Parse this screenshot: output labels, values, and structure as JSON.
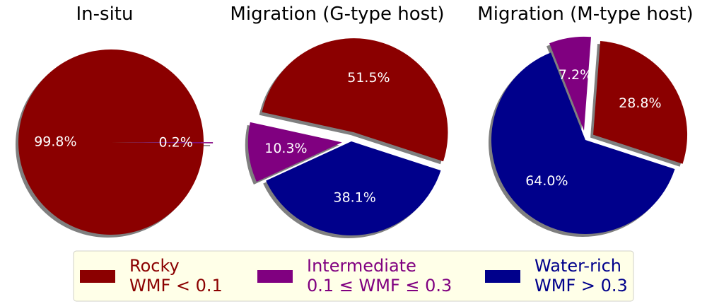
{
  "chart_data": {
    "type": "pie",
    "categories": [
      "Rocky",
      "Intermediate",
      "Water-rich"
    ],
    "colors": {
      "Rocky": "#8b0000",
      "Intermediate": "#800080",
      "Water-rich": "#00008b"
    },
    "shadow_color": "#7f7f7f",
    "charts": [
      {
        "title": "In-situ",
        "values": [
          99.8,
          0.2,
          0.0
        ],
        "labels": [
          "99.8%",
          "0.2%",
          ""
        ],
        "explode": [
          0.0,
          0.1,
          0.1
        ],
        "startangle": 0
      },
      {
        "title": "Migration (G-type host)",
        "values": [
          51.5,
          10.3,
          38.1
        ],
        "labels": [
          "51.5%",
          "10.3%",
          "38.1%"
        ],
        "explode": [
          0.1,
          0.1,
          0.0
        ],
        "startangle": 342
      },
      {
        "title": "Migration (M-type host)",
        "values": [
          28.8,
          7.2,
          64.0
        ],
        "labels": [
          "28.8%",
          "7.2%",
          "64.0%"
        ],
        "explode": [
          0.1,
          0.1,
          0.0
        ],
        "startangle": 342
      }
    ]
  },
  "legend": {
    "background": "#ffffe8",
    "items": [
      {
        "name": "Rocky",
        "condition": "WMF < 0.1",
        "color": "#8b0000"
      },
      {
        "name": "Intermediate",
        "condition": "0.1 ≤ WMF ≤ 0.3",
        "color": "#800080"
      },
      {
        "name": "Water-rich",
        "condition": "WMF > 0.3",
        "color": "#00008b"
      }
    ]
  }
}
